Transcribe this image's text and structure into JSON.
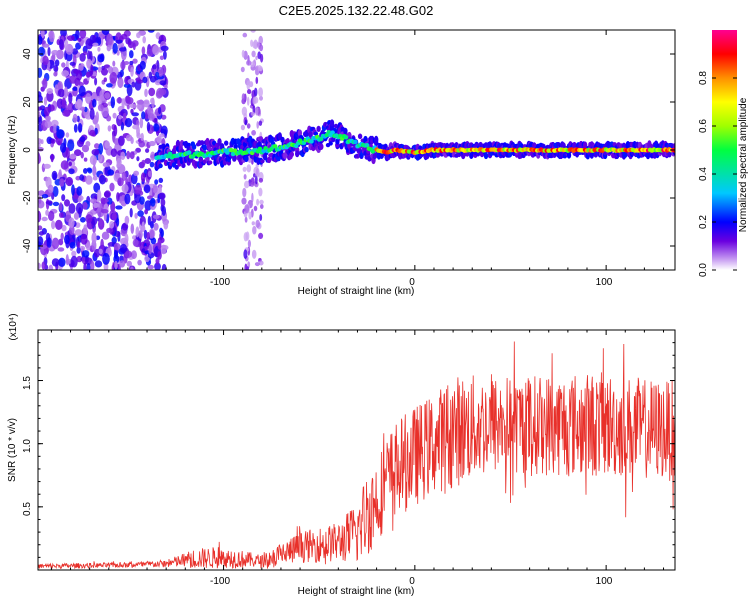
{
  "chart_data": [
    {
      "type": "heatmap",
      "title": "C2E5.2025.132.22.48.G02",
      "xlabel": "Height of straight line (km)",
      "ylabel": "Frequency (Hz)",
      "xlim": [
        -197,
        136
      ],
      "ylim": [
        -50,
        50
      ],
      "x_ticks": [
        -100,
        0,
        100
      ],
      "y_ticks": [
        -40,
        -20,
        0,
        20,
        40
      ],
      "x_tick_labels": [
        "-100",
        "0",
        "100"
      ],
      "y_tick_labels": [
        "-40",
        "-20",
        "0",
        "20",
        "40"
      ],
      "colorbar": {
        "label": "Normalized spectral amplitude",
        "range": [
          0,
          1
        ],
        "ticks": [
          0.0,
          0.2,
          0.4,
          0.6,
          0.8
        ],
        "tick_labels": [
          "0.0",
          "0.2",
          "0.4",
          "0.6",
          "0.8"
        ],
        "colors": [
          "#ffffff",
          "#c090f0",
          "#6a00e0",
          "#0000ff",
          "#00c8ff",
          "#00ff60",
          "#a0ff00",
          "#ffff00",
          "#ff9000",
          "#ff0000",
          "#ff0090"
        ]
      },
      "ridge": {
        "x": [
          -135,
          -120,
          -100,
          -80,
          -70,
          -60,
          -50,
          -45,
          -40,
          -35,
          -30,
          -25,
          -20,
          -15,
          -10,
          0,
          10,
          20,
          40,
          60,
          80,
          100,
          120,
          136
        ],
        "y": [
          -3,
          -2,
          -1,
          0,
          1,
          3,
          5,
          7,
          6,
          4,
          2,
          1,
          0,
          -1,
          0,
          -1,
          0,
          0,
          0,
          0,
          0,
          0,
          0,
          0
        ]
      },
      "noise_region_x": [
        -197,
        -130
      ],
      "noise_spike_x": [
        -90,
        -80
      ]
    },
    {
      "type": "line",
      "title": "",
      "xlabel": "Height of straight line (km)",
      "ylabel": "SNR (10 * v/v)",
      "y_multiplier": "(x10⁴)",
      "xlim": [
        -197,
        136
      ],
      "ylim": [
        0,
        1.9
      ],
      "x_ticks": [
        -100,
        0,
        100
      ],
      "y_ticks": [
        0.5,
        1.0,
        1.5
      ],
      "x_tick_labels": [
        "-100",
        "0",
        "100"
      ],
      "y_tick_labels": [
        "0.5",
        "1.0",
        "1.5"
      ],
      "series": [
        {
          "name": "SNR",
          "color": "#e8302a",
          "envelope_x": [
            -197,
            -150,
            -130,
            -115,
            -100,
            -80,
            -70,
            -60,
            -50,
            -40,
            -30,
            -25,
            -20,
            -15,
            -10,
            0,
            10,
            20,
            40,
            60,
            80,
            100,
            120,
            136
          ],
          "envelope_mean": [
            0.03,
            0.04,
            0.05,
            0.09,
            0.1,
            0.07,
            0.12,
            0.18,
            0.2,
            0.22,
            0.3,
            0.45,
            0.55,
            0.7,
            0.8,
            0.9,
            1.0,
            1.1,
            1.15,
            1.15,
            1.15,
            1.15,
            1.12,
            1.1
          ],
          "envelope_amp": [
            0.02,
            0.02,
            0.03,
            0.08,
            0.09,
            0.05,
            0.1,
            0.12,
            0.14,
            0.16,
            0.25,
            0.35,
            0.35,
            0.35,
            0.38,
            0.4,
            0.4,
            0.45,
            0.4,
            0.4,
            0.42,
            0.42,
            0.4,
            0.4
          ]
        }
      ]
    }
  ]
}
